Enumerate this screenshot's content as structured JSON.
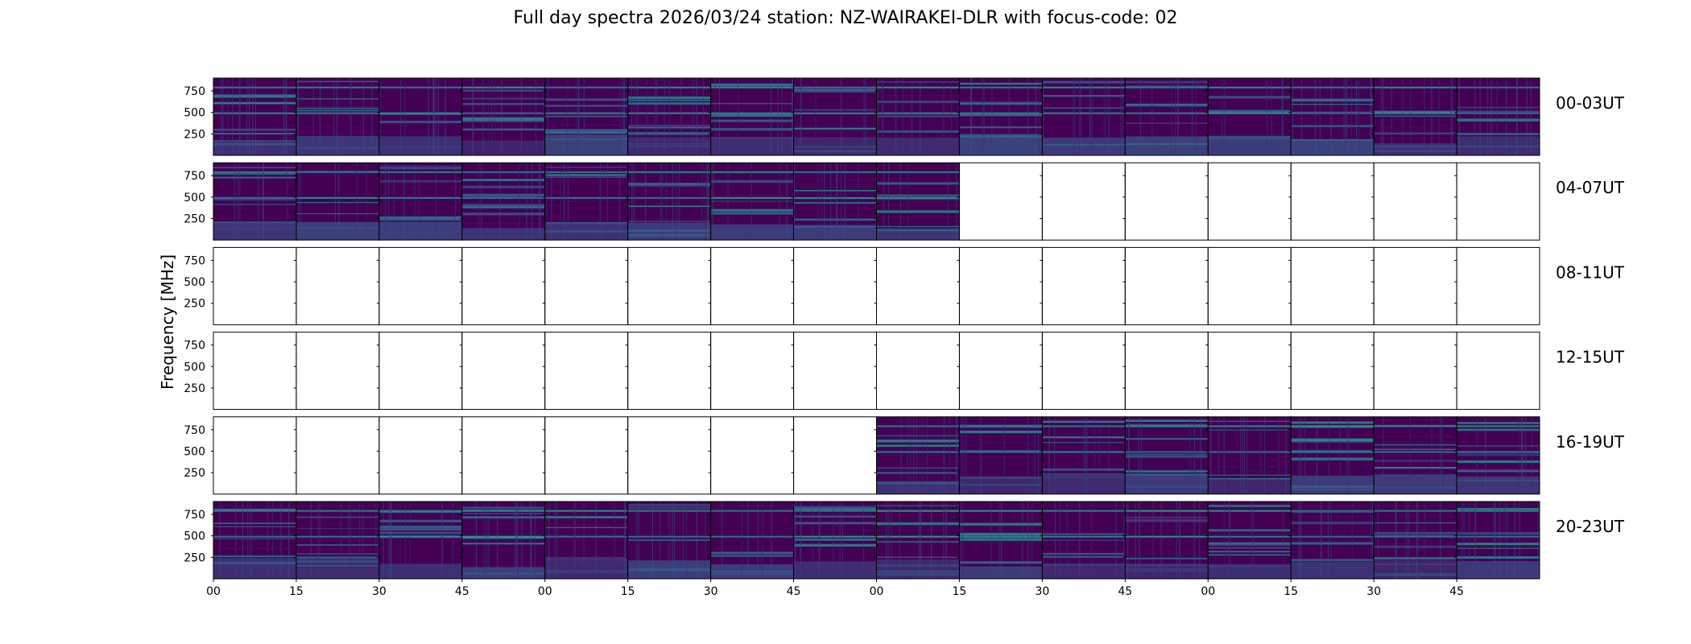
{
  "chart_data": {
    "type": "heatmap",
    "title": "Full day spectra 2026/03/24 station: NZ-WAIRAKEI-DLR with focus-code: 02",
    "ylabel": "Frequency [MHz]",
    "xlabel": "",
    "y_ticks": [
      "750",
      "500",
      "250"
    ],
    "ylim": [
      0,
      900
    ],
    "x_ticks": [
      "00",
      "15",
      "30",
      "45",
      "00",
      "15",
      "30",
      "45",
      "00",
      "15",
      "30",
      "45",
      "00",
      "15",
      "30",
      "45"
    ],
    "segment_minutes": 15,
    "panels_per_row": 16,
    "colormap": [
      "#440154",
      "#3b528b",
      "#21918c",
      "#5ec962",
      "#fde725"
    ],
    "rows": [
      {
        "label": "00-03UT",
        "panels": [
          1,
          1,
          1,
          1,
          1,
          1,
          1,
          1,
          1,
          1,
          1,
          1,
          1,
          1,
          1,
          1
        ]
      },
      {
        "label": "04-07UT",
        "panels": [
          1,
          1,
          1,
          1,
          1,
          1,
          1,
          1,
          1,
          0,
          0,
          0,
          0,
          0,
          0,
          0
        ]
      },
      {
        "label": "08-11UT",
        "panels": [
          0,
          0,
          0,
          0,
          0,
          0,
          0,
          0,
          0,
          0,
          0,
          0,
          0,
          0,
          0,
          0
        ]
      },
      {
        "label": "12-15UT",
        "panels": [
          0,
          0,
          0,
          0,
          0,
          0,
          0,
          0,
          0,
          0,
          0,
          0,
          0,
          0,
          0,
          0
        ]
      },
      {
        "label": "16-19UT",
        "panels": [
          0,
          0,
          0,
          0,
          0,
          0,
          0,
          0,
          1,
          1,
          1,
          1,
          1,
          1,
          1,
          1
        ]
      },
      {
        "label": "20-23UT",
        "panels": [
          1,
          1,
          1,
          1,
          1,
          1,
          1,
          1,
          1,
          1,
          1,
          1,
          1,
          1,
          1,
          1
        ]
      }
    ]
  }
}
